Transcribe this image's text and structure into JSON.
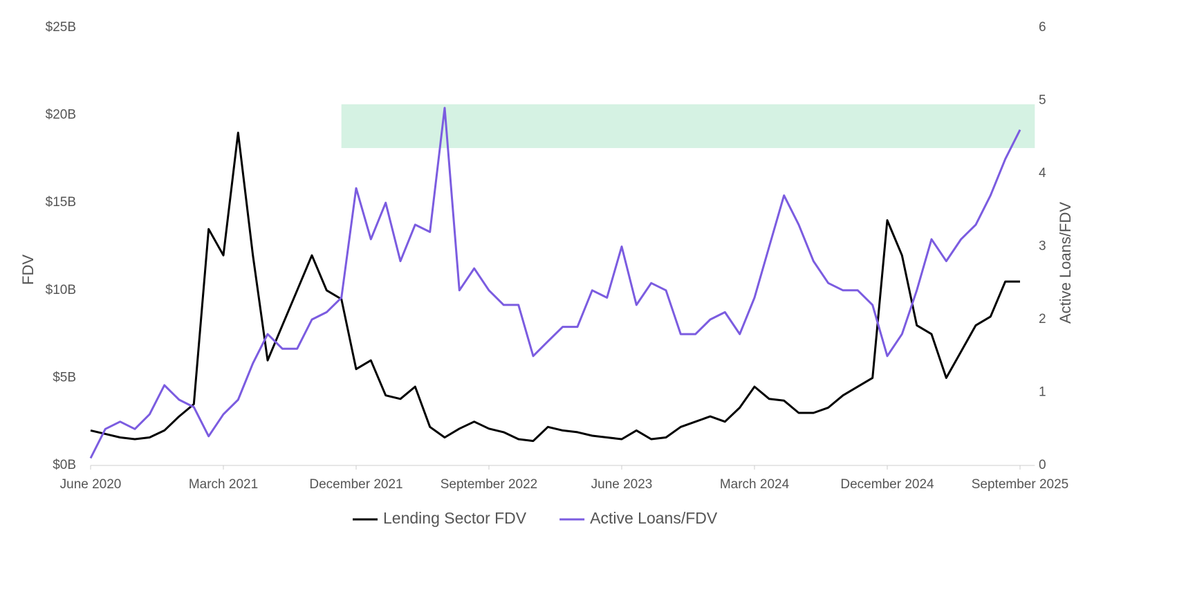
{
  "chart_data": {
    "type": "line",
    "x": [
      "2020-06",
      "2020-07",
      "2020-08",
      "2020-09",
      "2020-10",
      "2020-11",
      "2020-12",
      "2021-01",
      "2021-02",
      "2021-03",
      "2021-04",
      "2021-05",
      "2021-06",
      "2021-07",
      "2021-08",
      "2021-09",
      "2021-10",
      "2021-11",
      "2021-12",
      "2022-01",
      "2022-02",
      "2022-03",
      "2022-04",
      "2022-05",
      "2022-06",
      "2022-07",
      "2022-08",
      "2022-09",
      "2022-10",
      "2022-11",
      "2022-12",
      "2023-01",
      "2023-02",
      "2023-03",
      "2023-04",
      "2023-05",
      "2023-06",
      "2023-07",
      "2023-08",
      "2023-09",
      "2023-10",
      "2023-11",
      "2023-12",
      "2024-01",
      "2024-02",
      "2024-03",
      "2024-04",
      "2024-05",
      "2024-06",
      "2024-07",
      "2024-08",
      "2024-09",
      "2024-10",
      "2024-11",
      "2024-12",
      "2025-01",
      "2025-02",
      "2025-03",
      "2025-04",
      "2025-05",
      "2025-06",
      "2025-07",
      "2025-08",
      "2025-09"
    ],
    "series": [
      {
        "name": "Lending Sector FDV",
        "color": "#000000",
        "values": [
          2.0,
          1.8,
          1.6,
          1.5,
          1.6,
          2.0,
          2.8,
          3.5,
          13.5,
          12,
          19,
          12,
          6,
          8,
          10,
          12,
          10,
          9.5,
          5.5,
          6,
          4,
          3.8,
          4.5,
          2.2,
          1.6,
          2.1,
          2.5,
          2.1,
          1.9,
          1.5,
          1.4,
          2.2,
          2.0,
          1.9,
          1.7,
          1.6,
          1.5,
          2.0,
          1.5,
          1.6,
          2.2,
          2.5,
          2.8,
          2.5,
          3.3,
          4.5,
          3.8,
          3.7,
          3.0,
          3.0,
          3.3,
          4.0,
          4.5,
          5.0,
          14,
          12,
          8,
          7.5,
          5.0,
          6.5,
          8.0,
          8.5,
          10.5,
          10.5
        ]
      },
      {
        "name": "Active Loans/FDV",
        "color": "#7b5ce0",
        "axis": "y2",
        "values": [
          0.1,
          0.5,
          0.6,
          0.5,
          0.7,
          1.1,
          0.9,
          0.8,
          0.4,
          0.7,
          0.9,
          1.4,
          1.8,
          1.6,
          1.6,
          2.0,
          2.1,
          2.3,
          3.8,
          3.1,
          3.6,
          2.8,
          3.3,
          3.2,
          4.9,
          2.4,
          2.7,
          2.4,
          2.2,
          2.2,
          1.5,
          1.7,
          1.9,
          1.9,
          2.4,
          2.3,
          3.0,
          2.2,
          2.5,
          2.4,
          1.8,
          1.8,
          2.0,
          2.1,
          1.8,
          2.3,
          3.0,
          3.7,
          3.3,
          2.8,
          2.5,
          2.4,
          2.4,
          2.2,
          1.5,
          1.8,
          2.4,
          3.1,
          2.8,
          3.1,
          3.3,
          3.7,
          4.2,
          4.6
        ]
      }
    ],
    "xlim": [
      "2020-06",
      "2025-10"
    ],
    "xticks": [
      {
        "value": "2020-06",
        "label": "June 2020"
      },
      {
        "value": "2021-03",
        "label": "March 2021"
      },
      {
        "value": "2021-12",
        "label": "December 2021"
      },
      {
        "value": "2022-09",
        "label": "September 2022"
      },
      {
        "value": "2023-06",
        "label": "June 2023"
      },
      {
        "value": "2024-03",
        "label": "March 2024"
      },
      {
        "value": "2024-12",
        "label": "December 2024"
      },
      {
        "value": "2025-09",
        "label": "September 2025"
      }
    ],
    "ylabel": "FDV",
    "ylim": [
      0,
      25
    ],
    "yticks": [
      {
        "value": 0,
        "label": "$0B"
      },
      {
        "value": 5,
        "label": "$5B"
      },
      {
        "value": 10,
        "label": "$10B"
      },
      {
        "value": 15,
        "label": "$15B"
      },
      {
        "value": 20,
        "label": "$20B"
      },
      {
        "value": 25,
        "label": "$25B"
      }
    ],
    "y2label": "Active Loans/FDV",
    "y2lim": [
      0,
      6
    ],
    "y2ticks": [
      0,
      1,
      2,
      3,
      4,
      5,
      6
    ],
    "band": {
      "x": [
        "2021-11",
        "2025-10"
      ],
      "y2": [
        4.35,
        4.95
      ],
      "color": "#d5f2e3"
    },
    "legend": "bottom"
  }
}
